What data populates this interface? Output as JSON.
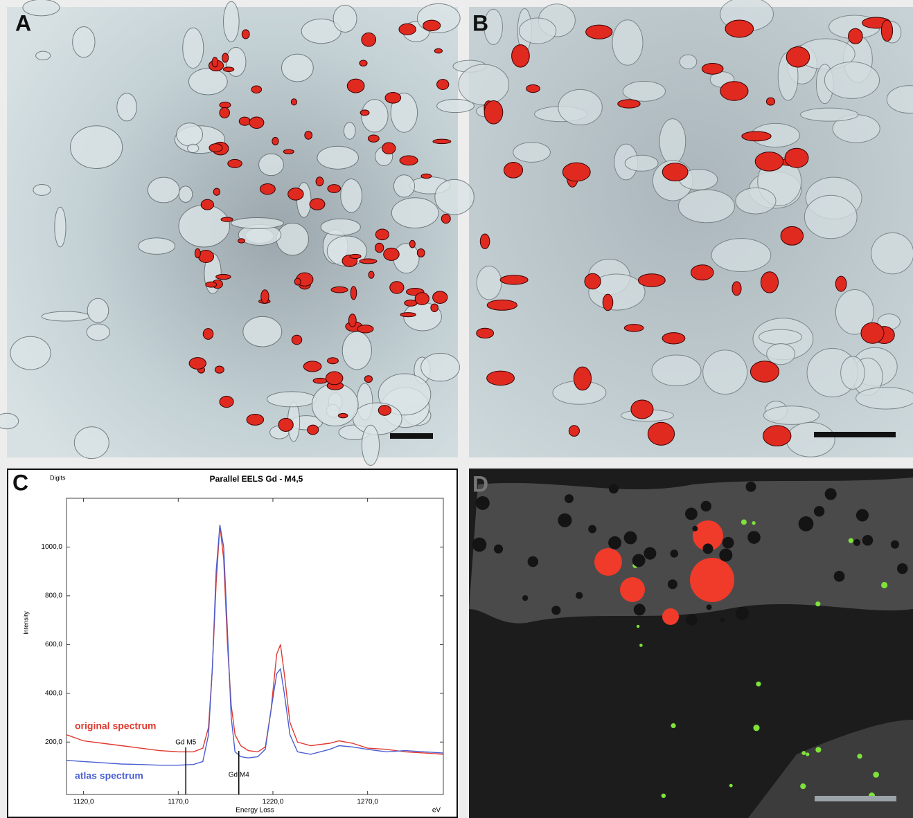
{
  "panel_labels": [
    "A",
    "B",
    "C",
    "D"
  ],
  "chart_data": {
    "type": "line",
    "title": "Parallel EELS Gd - M4,5",
    "y_unit": "Digits",
    "y_label": "Intensity",
    "x_label": "Energy Loss",
    "x_unit": "eV",
    "x": [
      1111,
      1120,
      1130,
      1140,
      1150,
      1160,
      1170,
      1178,
      1183,
      1186,
      1188,
      1190,
      1192,
      1194,
      1196,
      1198,
      1200,
      1203,
      1207,
      1212,
      1216,
      1219,
      1222,
      1224,
      1226,
      1229,
      1233,
      1240,
      1250,
      1255,
      1262,
      1270,
      1280,
      1290,
      1300,
      1310
    ],
    "series": [
      {
        "name": "original spectrum",
        "color": "#e0392f",
        "values": [
          230,
          205,
          195,
          185,
          175,
          165,
          160,
          160,
          175,
          260,
          500,
          850,
          1090,
          950,
          600,
          350,
          230,
          185,
          165,
          160,
          180,
          330,
          560,
          600,
          480,
          280,
          200,
          185,
          195,
          205,
          195,
          175,
          170,
          160,
          155,
          150
        ]
      },
      {
        "name": "atlas spectrum",
        "color": "#4a5fd0",
        "values": [
          125,
          120,
          115,
          110,
          108,
          105,
          105,
          108,
          120,
          230,
          500,
          900,
          1090,
          1000,
          650,
          300,
          160,
          140,
          135,
          140,
          170,
          330,
          480,
          500,
          400,
          230,
          160,
          150,
          170,
          185,
          180,
          170,
          160,
          165,
          160,
          155
        ]
      }
    ],
    "annotations": [
      {
        "text": "Gd M5",
        "x": 1174
      },
      {
        "text": "Gd M4",
        "x": 1202
      }
    ],
    "xlim": [
      1111,
      1310
    ],
    "ylim": [
      -15,
      1200
    ],
    "xticks": [
      {
        "value": 1120,
        "label": "1120,0"
      },
      {
        "value": 1170,
        "label": "1170,0"
      },
      {
        "value": 1220,
        "label": "1220,0"
      },
      {
        "value": 1270,
        "label": "1270,0"
      }
    ],
    "yticks": [
      {
        "value": 200,
        "label": "200,0"
      },
      {
        "value": 400,
        "label": "400,0"
      },
      {
        "value": 600,
        "label": "600,0"
      },
      {
        "value": 800,
        "label": "800,0"
      },
      {
        "value": 1000,
        "label": "1000,0"
      }
    ],
    "grid": false
  }
}
